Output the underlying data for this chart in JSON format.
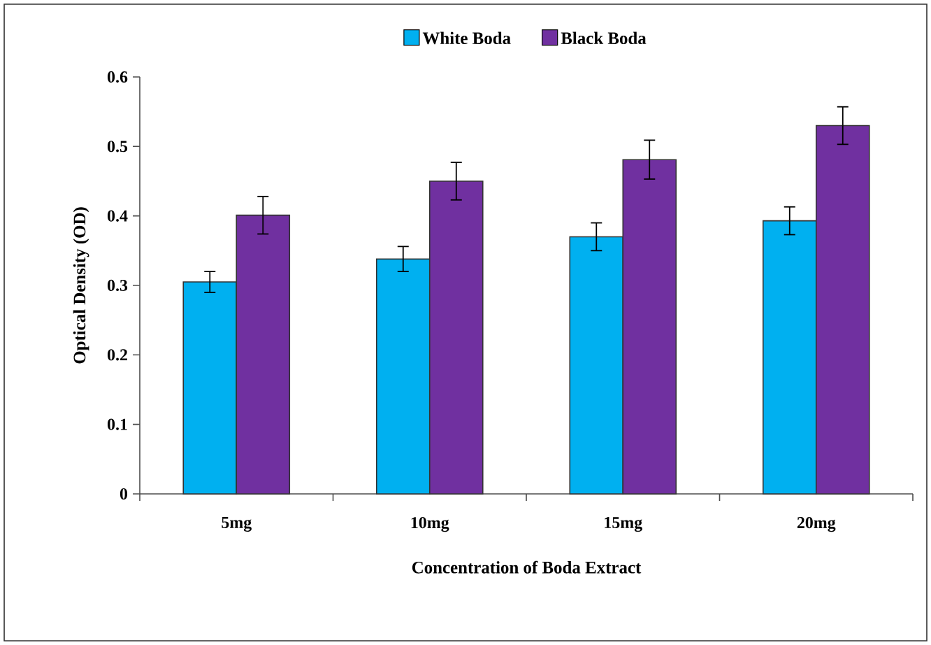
{
  "chart_data": {
    "type": "bar",
    "xlabel": "Concentration of Boda Extract",
    "ylabel": "Optical Density (OD)",
    "categories": [
      "5mg",
      "10mg",
      "15mg",
      "20mg"
    ],
    "series": [
      {
        "name": "White Boda",
        "color": "#00b0f0",
        "values": [
          0.305,
          0.338,
          0.37,
          0.393
        ],
        "errors": [
          0.015,
          0.018,
          0.02,
          0.02
        ]
      },
      {
        "name": "Black Boda",
        "color": "#7030a0",
        "values": [
          0.401,
          0.45,
          0.481,
          0.53
        ],
        "errors": [
          0.027,
          0.027,
          0.028,
          0.027
        ]
      }
    ],
    "ylim": [
      0,
      0.6
    ],
    "yticks": [
      0,
      0.1,
      0.2,
      0.3,
      0.4,
      0.5,
      0.6
    ],
    "grid": false,
    "legend": "top"
  }
}
